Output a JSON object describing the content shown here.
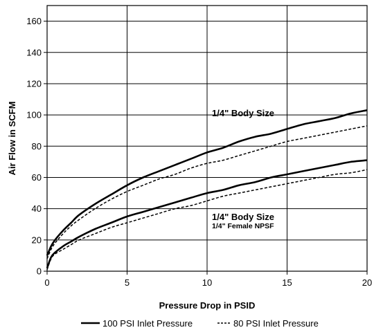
{
  "chart_data": {
    "type": "line",
    "title": "",
    "xlabel": "Pressure Drop in PSID",
    "ylabel": "Air Flow in SCFM",
    "xlim": [
      0,
      20
    ],
    "ylim": [
      0,
      170
    ],
    "xticks": [
      0,
      5,
      10,
      15,
      20
    ],
    "yticks": [
      0,
      20,
      40,
      60,
      80,
      100,
      120,
      140,
      160
    ],
    "grid": true,
    "legend_position": "bottom",
    "legend": [
      {
        "label": "100 PSI Inlet Pressure",
        "style": "solid"
      },
      {
        "label": "80 PSI Inlet Pressure",
        "style": "dashed"
      }
    ],
    "annotations": {
      "upper_label": "1/4\" Body Size",
      "lower_label": "1/4\" Body Size",
      "lower_sublabel": "1/4\" Female NPSF"
    },
    "series": [
      {
        "name": "100 PSI Inlet Pressure",
        "style": "solid",
        "group": "upper",
        "x": [
          0,
          0.25,
          0.5,
          1,
          1.5,
          2,
          3,
          4,
          5,
          6,
          7,
          8,
          9,
          10,
          11,
          12,
          13,
          14,
          15,
          16,
          17,
          18,
          19,
          20
        ],
        "y": [
          10,
          16,
          20,
          26,
          31,
          36,
          43,
          49,
          55,
          60,
          64,
          68,
          72,
          76,
          79,
          83,
          86,
          88,
          91,
          94,
          96,
          98,
          101,
          103
        ]
      },
      {
        "name": "80 PSI Inlet Pressure",
        "style": "dashed",
        "group": "upper",
        "x": [
          0,
          0.25,
          0.5,
          1,
          1.5,
          2,
          3,
          4,
          5,
          6,
          7,
          8,
          9,
          10,
          11,
          12,
          13,
          14,
          15,
          16,
          17,
          18,
          19,
          20
        ],
        "y": [
          8,
          14,
          18,
          24,
          29,
          33,
          40,
          46,
          51,
          55,
          59,
          62,
          66,
          69,
          71,
          74,
          77,
          80,
          83,
          85,
          87,
          89,
          91,
          93
        ]
      },
      {
        "name": "100 PSI Inlet Pressure",
        "style": "solid",
        "group": "lower",
        "x": [
          0,
          0.25,
          0.5,
          1,
          1.5,
          2,
          3,
          4,
          5,
          6,
          7,
          8,
          9,
          10,
          11,
          12,
          13,
          14,
          15,
          16,
          17,
          18,
          19,
          20
        ],
        "y": [
          2,
          9,
          12,
          16,
          19,
          22,
          27,
          31,
          35,
          38,
          41,
          44,
          47,
          50,
          52,
          55,
          57,
          60,
          62,
          64,
          66,
          68,
          70,
          71
        ]
      },
      {
        "name": "80 PSI Inlet Pressure",
        "style": "dashed",
        "group": "lower",
        "x": [
          0,
          0.25,
          0.5,
          1,
          1.5,
          2,
          3,
          4,
          5,
          6,
          7,
          8,
          9,
          10,
          11,
          12,
          13,
          14,
          15,
          16,
          17,
          18,
          19,
          20
        ],
        "y": [
          1,
          8,
          11,
          14,
          17,
          20,
          24,
          28,
          31,
          34,
          37,
          40,
          42,
          45,
          48,
          50,
          52,
          54,
          56,
          58,
          60,
          62,
          63,
          65
        ]
      }
    ]
  }
}
